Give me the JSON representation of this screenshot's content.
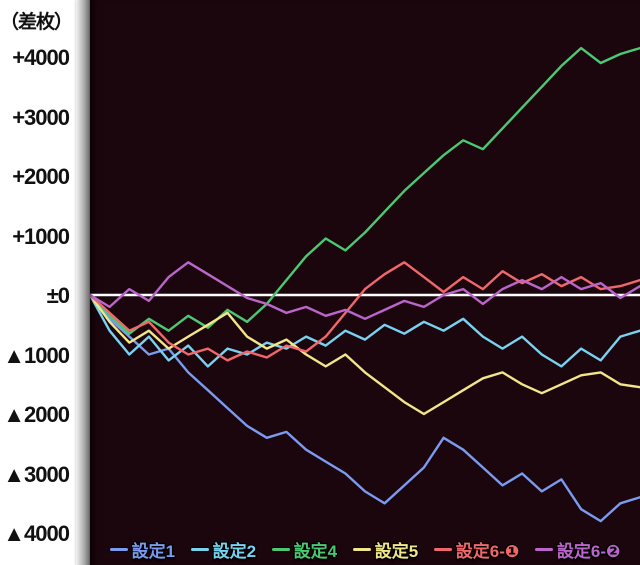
{
  "chart_data": {
    "type": "line",
    "title": "",
    "unit_label": "（差枚）",
    "ylabel": "差枚",
    "xlabel": "",
    "ylim": [
      -4600,
      4700
    ],
    "grid": false,
    "legend_position": "bottom",
    "background_color": "#1c060e",
    "zero_line_color": "#ffffff",
    "axis_text_color": "#111111",
    "y_ticks": [
      {
        "label": "+4000",
        "value": 4000
      },
      {
        "label": "+3000",
        "value": 3000
      },
      {
        "label": "+2000",
        "value": 2000
      },
      {
        "label": "+1000",
        "value": 1000
      },
      {
        "label": "±0",
        "value": 0
      },
      {
        "label": "▲1000",
        "value": -1000
      },
      {
        "label": "▲2000",
        "value": -2000
      },
      {
        "label": "▲3000",
        "value": -3000
      },
      {
        "label": "▲4000",
        "value": -4000
      }
    ],
    "series": [
      {
        "name": "設定1",
        "color": "#7a9bf0",
        "values": [
          0,
          -400,
          -700,
          -1000,
          -900,
          -1300,
          -1600,
          -1900,
          -2200,
          -2400,
          -2300,
          -2600,
          -2800,
          -3000,
          -3300,
          -3500,
          -3200,
          -2900,
          -2400,
          -2600,
          -2900,
          -3200,
          -3000,
          -3300,
          -3100,
          -3600,
          -3800,
          -3500,
          -3400
        ]
      },
      {
        "name": "設定2",
        "color": "#79d2f0",
        "values": [
          0,
          -600,
          -1000,
          -700,
          -1100,
          -850,
          -1200,
          -900,
          -1000,
          -800,
          -900,
          -700,
          -850,
          -600,
          -750,
          -500,
          -650,
          -450,
          -600,
          -400,
          -700,
          -900,
          -700,
          -1000,
          -1200,
          -900,
          -1100,
          -700,
          -600
        ]
      },
      {
        "name": "設定4",
        "color": "#4cc873",
        "values": [
          0,
          -350,
          -650,
          -400,
          -600,
          -350,
          -550,
          -250,
          -450,
          -150,
          250,
          650,
          950,
          750,
          1050,
          1400,
          1750,
          2050,
          2350,
          2600,
          2450,
          2800,
          3150,
          3500,
          3850,
          4150,
          3900,
          4050,
          4150
        ]
      },
      {
        "name": "設定5",
        "color": "#f2e68a",
        "values": [
          0,
          -450,
          -800,
          -600,
          -900,
          -700,
          -500,
          -300,
          -700,
          -900,
          -750,
          -1000,
          -1200,
          -1000,
          -1300,
          -1550,
          -1800,
          -2000,
          -1800,
          -1600,
          -1400,
          -1300,
          -1500,
          -1650,
          -1500,
          -1350,
          -1300,
          -1500,
          -1550
        ]
      },
      {
        "name": "設定6-❶",
        "color": "#f0686c",
        "values": [
          0,
          -300,
          -600,
          -450,
          -800,
          -1000,
          -900,
          -1100,
          -950,
          -1050,
          -850,
          -950,
          -700,
          -300,
          100,
          350,
          550,
          300,
          50,
          300,
          100,
          400,
          200,
          350,
          150,
          300,
          100,
          150,
          250
        ]
      },
      {
        "name": "設定6-❷",
        "color": "#bb66cc",
        "values": [
          0,
          -200,
          100,
          -100,
          300,
          550,
          350,
          150,
          -50,
          -150,
          -300,
          -200,
          -350,
          -250,
          -400,
          -250,
          -100,
          -200,
          0,
          100,
          -150,
          100,
          250,
          100,
          300,
          100,
          200,
          -50,
          150
        ]
      }
    ]
  }
}
